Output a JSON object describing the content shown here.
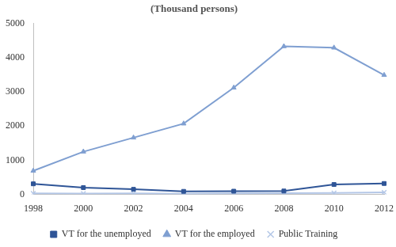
{
  "chart_data": {
    "type": "line",
    "title": "(Thousand persons)",
    "categories": [
      "1998",
      "2000",
      "2002",
      "2004",
      "2006",
      "2008",
      "2010",
      "2012"
    ],
    "series": [
      {
        "name": "VT for the unemployed",
        "color": "#2f5597",
        "marker": "square",
        "values": [
          310,
          200,
          150,
          90,
          95,
          100,
          290,
          320
        ]
      },
      {
        "name": "VT for the employed",
        "color": "#7f9fd1",
        "marker": "triangle",
        "values": [
          690,
          1250,
          1660,
          2070,
          3120,
          4330,
          4290,
          3490
        ]
      },
      {
        "name": "Public Training",
        "color": "#b4c7e7",
        "marker": "cross",
        "values": [
          30,
          25,
          30,
          20,
          30,
          35,
          40,
          60
        ]
      }
    ],
    "ylim": [
      0,
      5000
    ],
    "yticks": [
      0,
      1000,
      2000,
      3000,
      4000,
      5000
    ],
    "grid": false,
    "legend": "bottom"
  }
}
